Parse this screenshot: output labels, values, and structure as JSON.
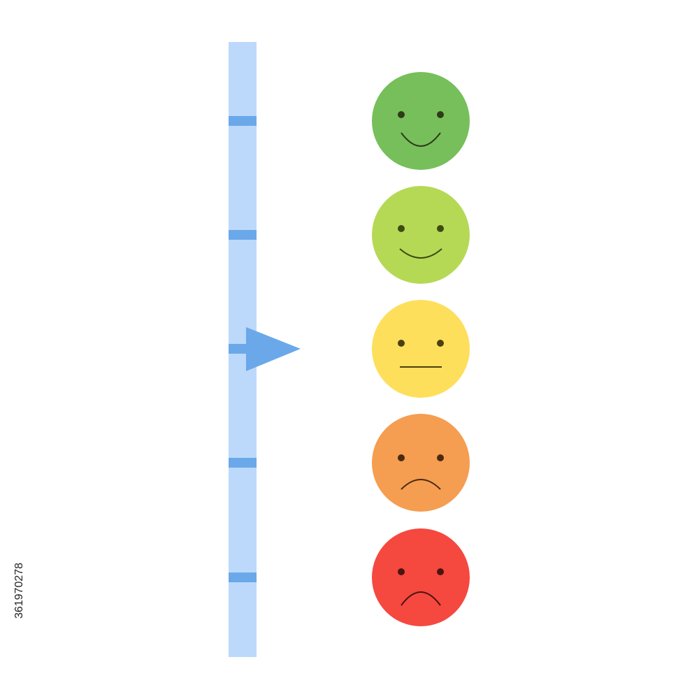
{
  "stock_id": "361970278"
}
